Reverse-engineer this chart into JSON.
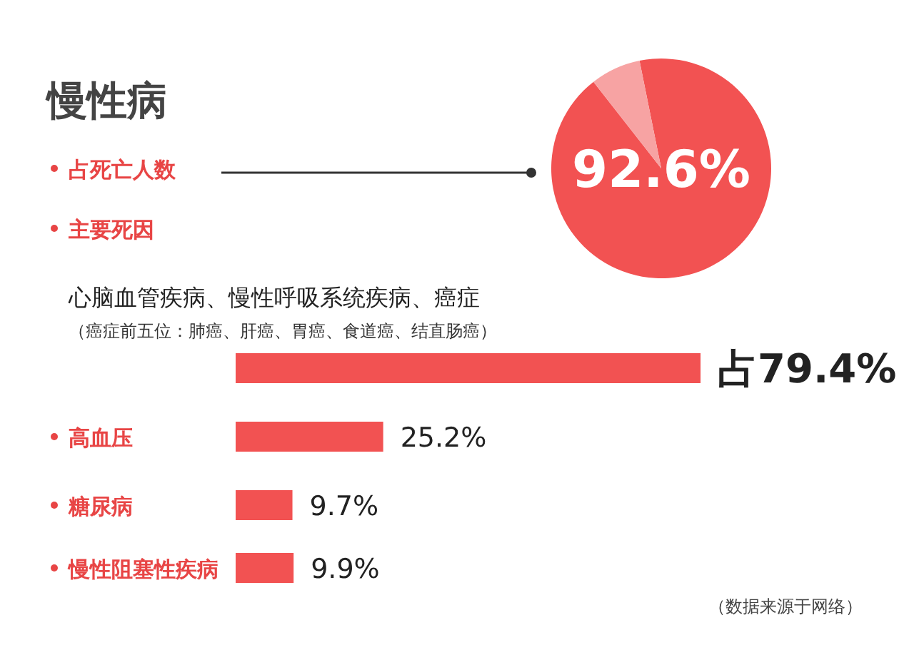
{
  "chart_data": [
    {
      "type": "pie",
      "title": "慢性病",
      "categories": [
        "占死亡人数",
        null
      ],
      "values": [
        92.6,
        7.4
      ],
      "colors": [
        "#f25252",
        "#f7a3a3"
      ],
      "value_labels": [
        "92.6%",
        null
      ]
    },
    {
      "type": "bar",
      "orientation": "horizontal",
      "title": "主要死因",
      "categories": [
        "心脑血管疾病、慢性呼吸系统疾病、癌症",
        "高血压",
        "糖尿病",
        "慢性阻塞性疾病"
      ],
      "values": [
        79.4,
        25.2,
        9.7,
        9.9
      ],
      "color": "#f25252",
      "value_labels": [
        "占79.4%",
        "25.2%",
        "9.7%",
        "9.9%"
      ],
      "annotations": [
        "（癌症前五位：肺癌、肝癌、胃癌、食道癌、结直肠癌）",
        "（数据来源于网络）"
      ]
    }
  ]
}
